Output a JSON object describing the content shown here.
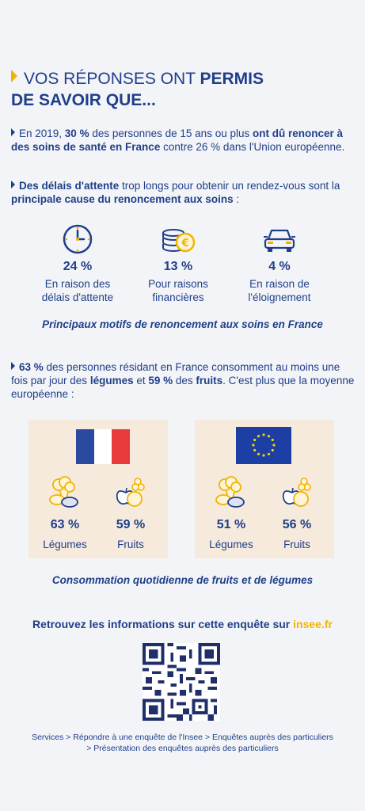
{
  "title": {
    "prefix": "VOS RÉPONSES ONT ",
    "bold": "PERMIS",
    "line2": "DE SAVOIR QUE..."
  },
  "bullet1": {
    "p1": "En 2019, ",
    "b1": "30 %",
    "p2": " des personnes de 15 ans ou plus ",
    "b2": "ont dû renoncer à des soins de santé en France",
    "p3": " contre 26 % dans l'Union européenne."
  },
  "bullet2": {
    "b1": "Des délais d'attente",
    "p1": " trop longs pour obtenir un rendez-vous sont la ",
    "b2": "principale cause du renoncement aux soins",
    "p2": " :"
  },
  "stats": [
    {
      "icon": "clock-icon",
      "value": "24 %",
      "line1": "En raison des",
      "line2": "délais d'attente"
    },
    {
      "icon": "coins-euro-icon",
      "value": "13 %",
      "line1": "Pour raisons",
      "line2": "financières"
    },
    {
      "icon": "car-icon",
      "value": "4 %",
      "line1": "En raison de",
      "line2": "l'éloignement"
    }
  ],
  "caption1": "Principaux motifs de renoncement aux soins en France",
  "bullet3": {
    "b1": "63 %",
    "p1": " des personnes résidant en France consomment au moins une fois par jour des ",
    "b2": "légumes",
    "p2": " et ",
    "b3": "59 %",
    "p3": " des ",
    "b4": "fruits",
    "p4": ". C'est plus que la moyenne européenne :"
  },
  "france": {
    "flag": "france-flag",
    "veg_value": "63 %",
    "veg_label": "Légumes",
    "fruit_value": "59 %",
    "fruit_label": "Fruits"
  },
  "europe": {
    "flag": "eu-flag",
    "veg_value": "51 %",
    "veg_label": "Légumes",
    "fruit_value": "56 %",
    "fruit_label": "Fruits"
  },
  "caption2": "Consommation quotidienne de fruits et de légumes",
  "more": {
    "text": "Retrouvez les informations sur cette enquête sur ",
    "site": "insee.fr"
  },
  "nav": {
    "line1": "Services > Répondre à une enquête de l'Insee > Enquêtes auprès des particuliers",
    "line2": "> Présentation des enquêtes auprès des particuliers"
  },
  "colors": {
    "navy": "#1f3f8a",
    "yellow": "#f2b300",
    "panel": "#f5eadc"
  }
}
